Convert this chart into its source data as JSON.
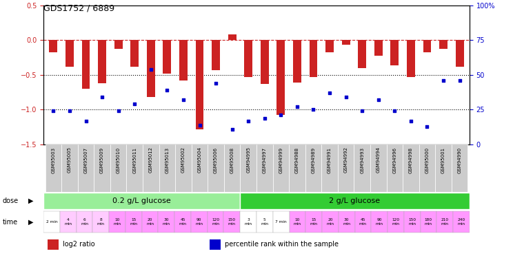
{
  "title": "GDS1752 / 6889",
  "samples": [
    "GSM95003",
    "GSM95005",
    "GSM95007",
    "GSM95009",
    "GSM95010",
    "GSM95011",
    "GSM95012",
    "GSM95013",
    "GSM95002",
    "GSM95004",
    "GSM95006",
    "GSM95008",
    "GSM94995",
    "GSM94997",
    "GSM94999",
    "GSM94988",
    "GSM94989",
    "GSM94991",
    "GSM94992",
    "GSM94993",
    "GSM94994",
    "GSM94996",
    "GSM94998",
    "GSM95000",
    "GSM95001",
    "GSM94990"
  ],
  "log2_ratio": [
    -0.18,
    -0.38,
    -0.7,
    -0.62,
    -0.13,
    -0.38,
    -0.82,
    -0.48,
    -0.58,
    -1.28,
    -0.43,
    0.08,
    -0.53,
    -0.63,
    -1.08,
    -0.61,
    -0.53,
    -0.18,
    -0.07,
    -0.4,
    -0.23,
    -0.36,
    -0.53,
    -0.18,
    -0.13,
    -0.38
  ],
  "percentile_rank": [
    24,
    24,
    17,
    34,
    24,
    29,
    54,
    39,
    32,
    14,
    44,
    11,
    17,
    19,
    21,
    27,
    25,
    37,
    34,
    24,
    32,
    24,
    17,
    13,
    46,
    46
  ],
  "dose_group1_count": 12,
  "dose_group2_count": 14,
  "dose_group1_label": "0.2 g/L glucose",
  "dose_group2_label": "2 g/L glucose",
  "dose_group1_color": "#99ee99",
  "dose_group2_color": "#33cc33",
  "time_labels": [
    "2 min",
    "4\nmin",
    "6\nmin",
    "8\nmin",
    "10\nmin",
    "15\nmin",
    "20\nmin",
    "30\nmin",
    "45\nmin",
    "90\nmin",
    "120\nmin",
    "150\nmin",
    "3\nmin",
    "5\nmin",
    "7 min",
    "10\nmin",
    "15\nmin",
    "20\nmin",
    "30\nmin",
    "45\nmin",
    "90\nmin",
    "120\nmin",
    "150\nmin",
    "180\nmin",
    "210\nmin",
    "240\nmin"
  ],
  "time_colors": [
    "#ffffff",
    "#ffccff",
    "#ffccff",
    "#ffccff",
    "#ff99ff",
    "#ff99ff",
    "#ff99ff",
    "#ff99ff",
    "#ff99ff",
    "#ff99ff",
    "#ff99ff",
    "#ff99ff",
    "#ffffff",
    "#ffffff",
    "#ffffff",
    "#ff99ff",
    "#ff99ff",
    "#ff99ff",
    "#ff99ff",
    "#ff99ff",
    "#ff99ff",
    "#ff99ff",
    "#ff99ff",
    "#ff99ff",
    "#ff99ff",
    "#ff99ff"
  ],
  "bar_color": "#cc2222",
  "dot_color": "#0000cc",
  "ref_line_color": "#cc2222",
  "dotted_line_color": "#000000",
  "ylim_left": [
    -1.5,
    0.5
  ],
  "ylim_right": [
    0,
    100
  ],
  "yticks_left": [
    -1.5,
    -1.0,
    -0.5,
    0.0,
    0.5
  ],
  "yticks_right": [
    0,
    25,
    50,
    75,
    100
  ],
  "legend_items": [
    {
      "label": "log2 ratio",
      "color": "#cc2222"
    },
    {
      "label": "percentile rank within the sample",
      "color": "#0000cc"
    }
  ]
}
